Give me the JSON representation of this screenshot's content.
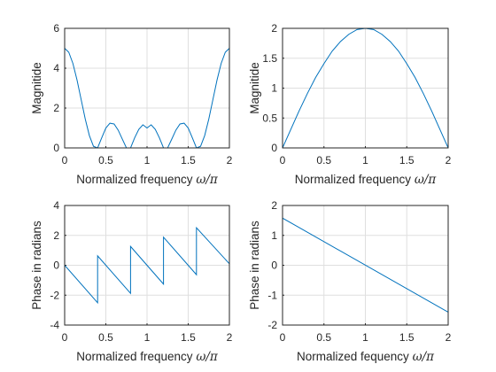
{
  "chart_data": [
    {
      "type": "line",
      "xlabel": "Normalized frequency ω/π",
      "ylabel": "Magnitide",
      "xlim": [
        0,
        2
      ],
      "ylim": [
        0,
        6
      ],
      "xticks": [
        "0",
        "0.5",
        "1",
        "1.5",
        "2"
      ],
      "yticks": [
        "0",
        "2",
        "4",
        "6"
      ],
      "grid": true,
      "series": [
        {
          "values_x": [
            0,
            0.05,
            0.1,
            0.15,
            0.2,
            0.25,
            0.3,
            0.35,
            0.4,
            0.45,
            0.5,
            0.55,
            0.6,
            0.65,
            0.7,
            0.75,
            0.8,
            0.85,
            0.9,
            0.95,
            1.0,
            1.05,
            1.1,
            1.15,
            1.2,
            1.25,
            1.3,
            1.35,
            1.4,
            1.45,
            1.5,
            1.55,
            1.6,
            1.65,
            1.7,
            1.75,
            1.8,
            1.85,
            1.9,
            1.95,
            2.0
          ],
          "values_y": [
            5.0,
            4.8,
            4.24,
            3.41,
            2.43,
            1.45,
            0.62,
            0.08,
            0.0,
            0.51,
            1.0,
            1.24,
            1.2,
            0.89,
            0.44,
            0.0,
            0.0,
            0.51,
            0.93,
            1.16,
            1.0,
            1.16,
            0.93,
            0.51,
            0.0,
            0.0,
            0.44,
            0.89,
            1.2,
            1.24,
            1.0,
            0.51,
            0.0,
            0.08,
            0.62,
            1.45,
            2.43,
            3.41,
            4.24,
            4.8,
            5.0
          ]
        }
      ]
    },
    {
      "type": "line",
      "xlabel": "Normalized frequency ω/π",
      "ylabel": "Magnitide",
      "xlim": [
        0,
        2
      ],
      "ylim": [
        0,
        2
      ],
      "xticks": [
        "0",
        "0.5",
        "1",
        "1.5",
        "2"
      ],
      "yticks": [
        "0",
        "0.5",
        "1",
        "1.5",
        "2"
      ],
      "grid": true,
      "series": [
        {
          "values_x": [
            0,
            0.1,
            0.2,
            0.3,
            0.4,
            0.5,
            0.6,
            0.7,
            0.8,
            0.9,
            1.0,
            1.1,
            1.2,
            1.3,
            1.4,
            1.5,
            1.6,
            1.7,
            1.8,
            1.9,
            2.0
          ],
          "values_y": [
            0,
            0.31,
            0.62,
            0.91,
            1.18,
            1.41,
            1.62,
            1.78,
            1.9,
            1.98,
            2.0,
            1.98,
            1.9,
            1.78,
            1.62,
            1.41,
            1.18,
            0.91,
            0.62,
            0.31,
            0
          ]
        }
      ]
    },
    {
      "type": "line",
      "xlabel": "Normalized frequency ω/π",
      "ylabel": "Phase in radians",
      "xlim": [
        0,
        2
      ],
      "ylim": [
        -4,
        4
      ],
      "xticks": [
        "0",
        "0.5",
        "1",
        "1.5",
        "2"
      ],
      "yticks": [
        "-4",
        "-2",
        "0",
        "2",
        "4"
      ],
      "grid": true,
      "series": [
        {
          "values_x": [
            0,
            0.4,
            0.4,
            0.8,
            0.8,
            1.2,
            1.2,
            1.6,
            1.6,
            2.0
          ],
          "values_y": [
            0,
            -2.51,
            0.63,
            -1.88,
            1.26,
            -1.26,
            1.88,
            -0.63,
            2.51,
            0.1
          ]
        }
      ]
    },
    {
      "type": "line",
      "xlabel": "Normalized fequency ω/π",
      "ylabel": "Phase in radians",
      "xlim": [
        0,
        2
      ],
      "ylim": [
        -2,
        2
      ],
      "xticks": [
        "0",
        "0.5",
        "1",
        "1.5",
        "2"
      ],
      "yticks": [
        "-2",
        "-1",
        "0",
        "1",
        "2"
      ],
      "grid": true,
      "series": [
        {
          "values_x": [
            0,
            0,
            0.005,
            2.0
          ],
          "values_y": [
            0,
            1.57,
            1.57,
            -1.57
          ]
        }
      ]
    }
  ]
}
